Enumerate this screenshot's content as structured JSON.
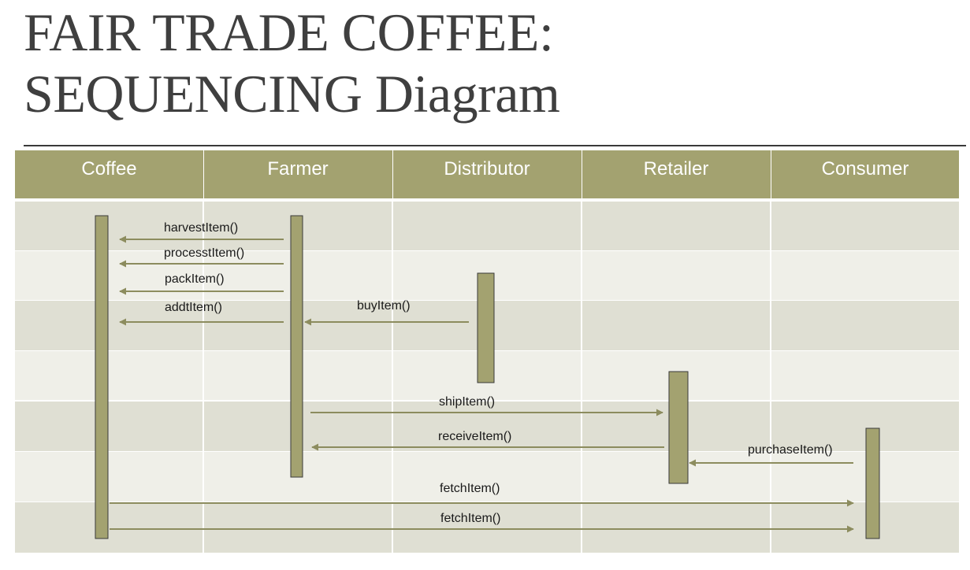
{
  "title": {
    "line1": "FAIR TRADE COFFEE:",
    "line2": "SEQUENCING Diagram"
  },
  "colors": {
    "header_bg": "#a3a270",
    "activation_fill": "#a3a270",
    "arrow": "#8c8c5e",
    "band_dark": "#dfdfd3",
    "band_light": "#efefe8"
  },
  "lifelines": [
    "Coffee",
    "Farmer",
    "Distributor",
    "Retailer",
    "Consumer"
  ],
  "messages": [
    {
      "label": "harvestItem()",
      "from": "Farmer",
      "to": "Coffee"
    },
    {
      "label": "processtItem()",
      "from": "Farmer",
      "to": "Coffee"
    },
    {
      "label": "packItem()",
      "from": "Farmer",
      "to": "Coffee"
    },
    {
      "label": "addtItem()",
      "from": "Farmer",
      "to": "Coffee"
    },
    {
      "label": "buyItem()",
      "from": "Distributor",
      "to": "Farmer"
    },
    {
      "label": "shipItem()",
      "from": "Farmer",
      "to": "Retailer"
    },
    {
      "label": "receiveItem()",
      "from": "Retailer",
      "to": "Farmer"
    },
    {
      "label": "purchaseItem()",
      "from": "Consumer",
      "to": "Retailer"
    },
    {
      "label": "fetchItem()",
      "from": "Coffee",
      "to": "Consumer"
    },
    {
      "label": "fetchItem()",
      "from": "Coffee",
      "to": "Consumer"
    }
  ]
}
